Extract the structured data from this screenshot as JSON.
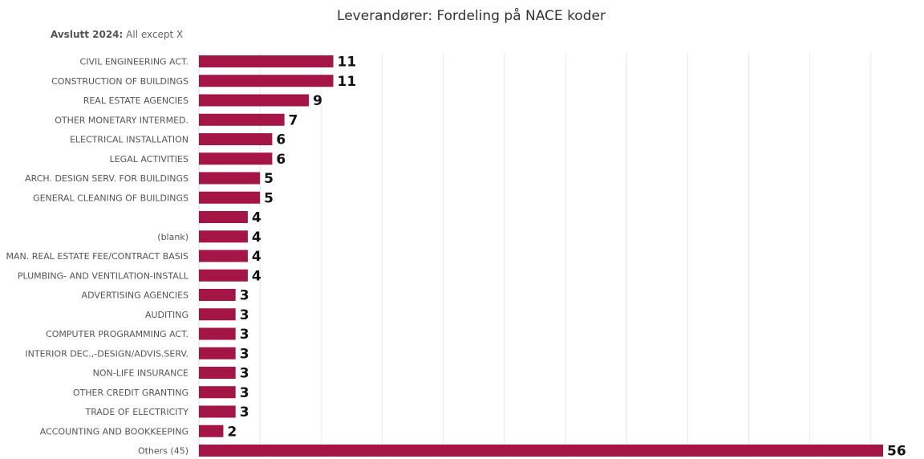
{
  "chart_data": {
    "type": "bar",
    "orientation": "horizontal",
    "title": "Leverandører: Fordeling på NACE koder",
    "filter": {
      "label": "Avslutt 2024:",
      "value": "All except X"
    },
    "categories": [
      "CIVIL ENGINEERING ACT.",
      "CONSTRUCTION OF BUILDINGS",
      "REAL ESTATE AGENCIES",
      "OTHER MONETARY INTERMED.",
      "ELECTRICAL INSTALLATION",
      "LEGAL ACTIVITIES",
      "ARCH. DESIGN SERV. FOR BUILDINGS",
      "GENERAL CLEANING OF BUILDINGS",
      "",
      "(blank)",
      "MAN. REAL ESTATE FEE/CONTRACT BASIS",
      "PLUMBING- AND VENTILATION-INSTALL",
      "ADVERTISING AGENCIES",
      "AUDITING",
      "COMPUTER PROGRAMMING ACT.",
      "INTERIOR DEC.,-DESIGN/ADVIS.SERV.",
      "NON-LIFE INSURANCE",
      "OTHER CREDIT GRANTING",
      "TRADE OF ELECTRICITY",
      "ACCOUNTING AND BOOKKEEPING",
      "Others (45)"
    ],
    "values": [
      11,
      11,
      9,
      7,
      6,
      6,
      5,
      5,
      4,
      4,
      4,
      4,
      3,
      3,
      3,
      3,
      3,
      3,
      3,
      2,
      56
    ],
    "xlim": [
      0,
      56
    ],
    "grid": "vertical",
    "bar_color": "#A31545",
    "data_labels": true
  }
}
